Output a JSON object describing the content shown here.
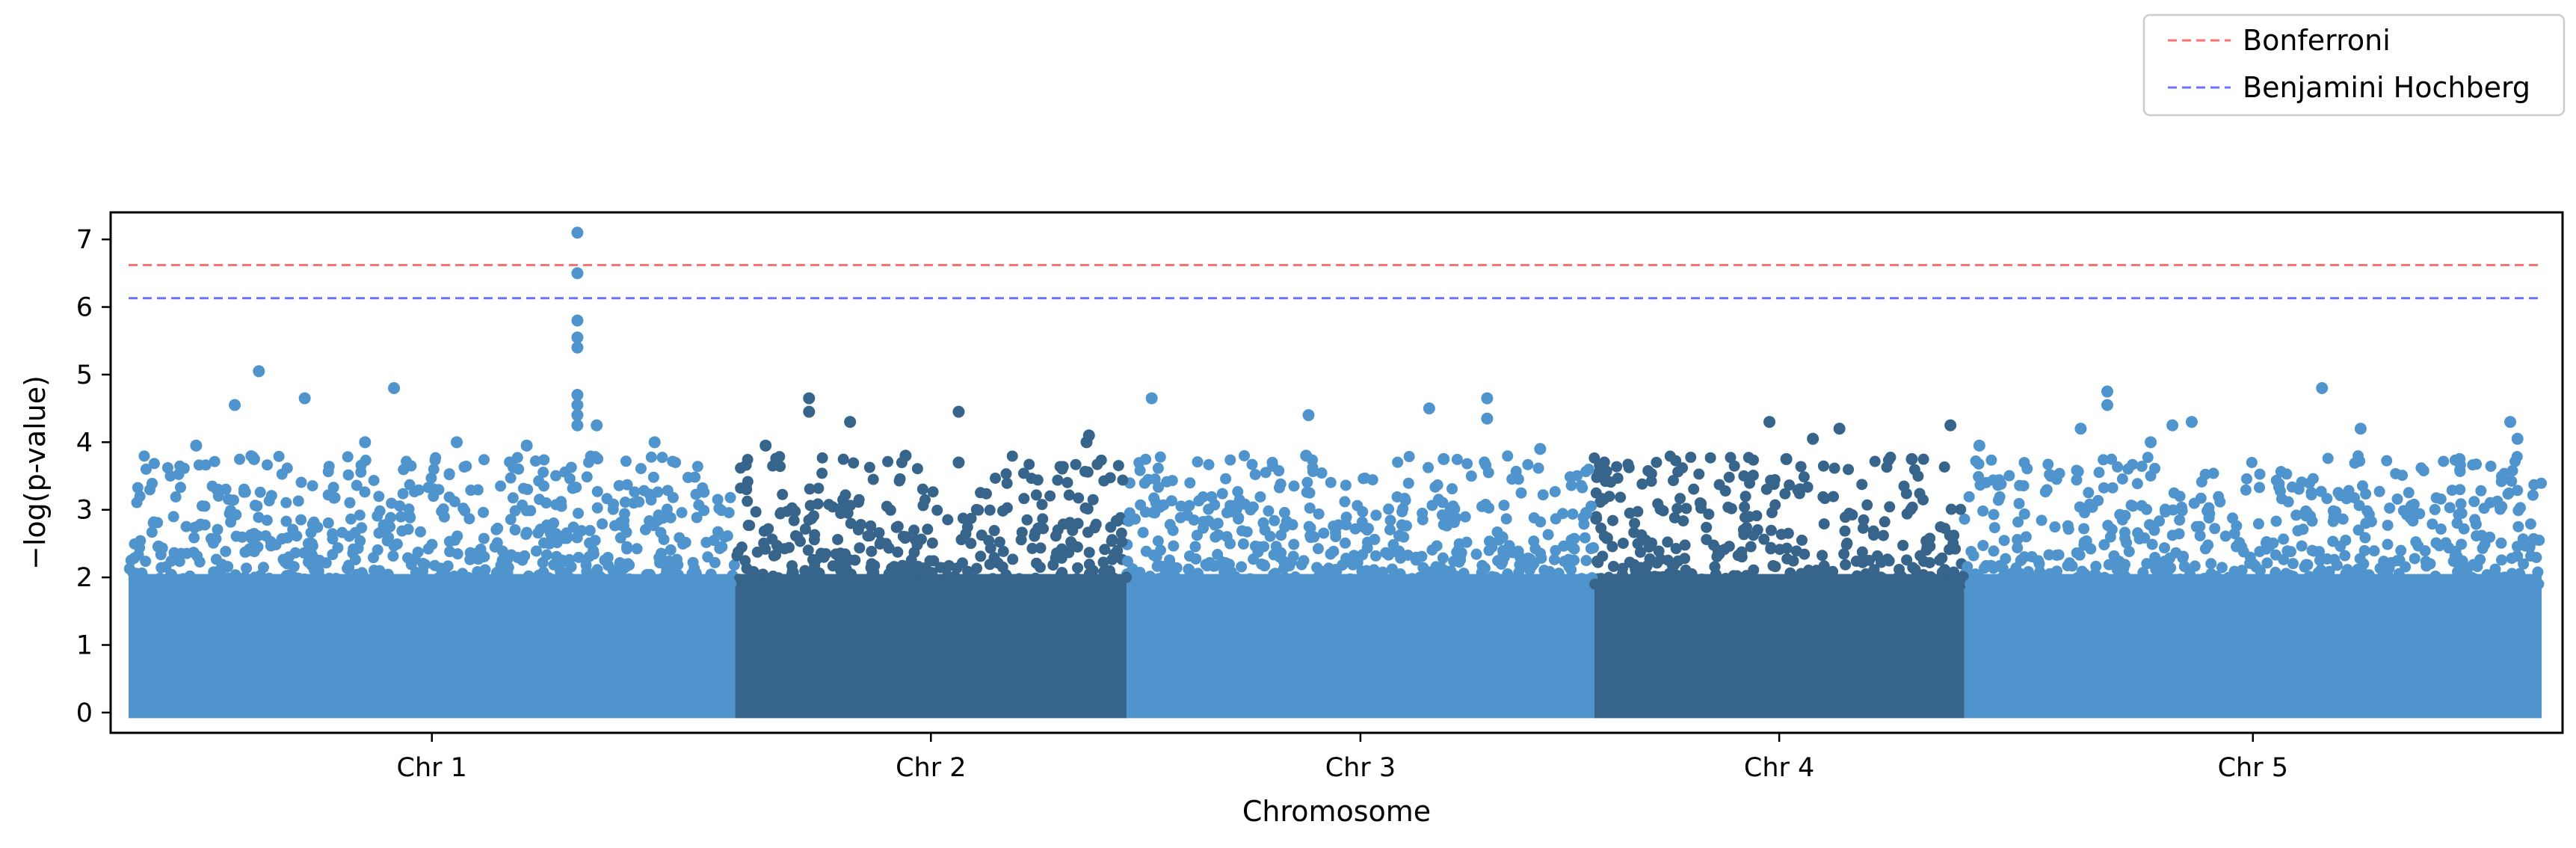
{
  "chart_data": {
    "type": "scatter",
    "title": "",
    "xlabel": "Chromosome",
    "ylabel": "−log(p-value)",
    "ylim": [
      -0.3,
      7.4
    ],
    "y_ticks": [
      0,
      1,
      2,
      3,
      4,
      5,
      6,
      7
    ],
    "grid": false,
    "legend_position": "top-right, above plot",
    "colors": {
      "light": "#4f94cd",
      "dark": "#36648b"
    },
    "categories": [
      "Chr 1",
      "Chr 2",
      "Chr 3",
      "Chr 4",
      "Chr 5"
    ],
    "chromosomes": [
      {
        "name": "Chr 1",
        "color": "#4f94cd",
        "start": 0.0,
        "end": 0.2514
      },
      {
        "name": "Chr 2",
        "color": "#36648b",
        "start": 0.2514,
        "end": 0.4136
      },
      {
        "name": "Chr 3",
        "color": "#4f94cd",
        "start": 0.4136,
        "end": 0.6074
      },
      {
        "name": "Chr 4",
        "color": "#36648b",
        "start": 0.6074,
        "end": 0.7607
      },
      {
        "name": "Chr 5",
        "color": "#4f94cd",
        "start": 0.7607,
        "end": 1.0
      }
    ],
    "thresholds": [
      {
        "name": "Bonferroni",
        "value": 6.62,
        "color": "#ff7070"
      },
      {
        "name": "Benjamini Hochberg",
        "value": 6.13,
        "color": "#7070ff"
      }
    ],
    "highlight_points": [
      {
        "x": 0.186,
        "y": 7.1
      },
      {
        "x": 0.186,
        "y": 6.5
      },
      {
        "x": 0.186,
        "y": 5.8
      },
      {
        "x": 0.186,
        "y": 5.55
      },
      {
        "x": 0.186,
        "y": 5.4
      },
      {
        "x": 0.186,
        "y": 4.7
      },
      {
        "x": 0.186,
        "y": 4.55
      },
      {
        "x": 0.186,
        "y": 4.4
      },
      {
        "x": 0.186,
        "y": 4.25
      },
      {
        "x": 0.194,
        "y": 4.25
      },
      {
        "x": 0.218,
        "y": 4.0
      },
      {
        "x": 0.054,
        "y": 5.05
      },
      {
        "x": 0.044,
        "y": 4.55
      },
      {
        "x": 0.073,
        "y": 4.65
      },
      {
        "x": 0.11,
        "y": 4.8
      },
      {
        "x": 0.098,
        "y": 4.0
      },
      {
        "x": 0.136,
        "y": 4.0
      },
      {
        "x": 0.028,
        "y": 3.95
      },
      {
        "x": 0.052,
        "y": 3.75
      },
      {
        "x": 0.165,
        "y": 3.95
      },
      {
        "x": 0.282,
        "y": 4.65
      },
      {
        "x": 0.282,
        "y": 4.45
      },
      {
        "x": 0.299,
        "y": 4.3
      },
      {
        "x": 0.344,
        "y": 4.45
      },
      {
        "x": 0.264,
        "y": 3.95
      },
      {
        "x": 0.322,
        "y": 3.8
      },
      {
        "x": 0.398,
        "y": 4.1
      },
      {
        "x": 0.397,
        "y": 4.0
      },
      {
        "x": 0.344,
        "y": 3.7
      },
      {
        "x": 0.424,
        "y": 4.65
      },
      {
        "x": 0.489,
        "y": 4.4
      },
      {
        "x": 0.539,
        "y": 4.5
      },
      {
        "x": 0.563,
        "y": 4.65
      },
      {
        "x": 0.563,
        "y": 4.35
      },
      {
        "x": 0.488,
        "y": 3.8
      },
      {
        "x": 0.585,
        "y": 3.9
      },
      {
        "x": 0.545,
        "y": 3.75
      },
      {
        "x": 0.68,
        "y": 4.3
      },
      {
        "x": 0.709,
        "y": 4.2
      },
      {
        "x": 0.698,
        "y": 4.05
      },
      {
        "x": 0.755,
        "y": 4.25
      },
      {
        "x": 0.687,
        "y": 3.75
      },
      {
        "x": 0.739,
        "y": 3.75
      },
      {
        "x": 0.767,
        "y": 3.95
      },
      {
        "x": 0.82,
        "y": 4.75
      },
      {
        "x": 0.82,
        "y": 4.55
      },
      {
        "x": 0.809,
        "y": 4.2
      },
      {
        "x": 0.847,
        "y": 4.25
      },
      {
        "x": 0.855,
        "y": 4.3
      },
      {
        "x": 0.909,
        "y": 4.8
      },
      {
        "x": 0.925,
        "y": 4.2
      },
      {
        "x": 0.987,
        "y": 4.3
      },
      {
        "x": 0.838,
        "y": 4.0
      },
      {
        "x": 0.966,
        "y": 3.75
      },
      {
        "x": 0.99,
        "y": 4.05
      }
    ],
    "x_unit": "fraction of genome"
  },
  "legend": {
    "items": [
      {
        "label": "Bonferroni",
        "color": "#ff7070"
      },
      {
        "label": "Benjamini Hochberg",
        "color": "#7070ff"
      }
    ]
  }
}
